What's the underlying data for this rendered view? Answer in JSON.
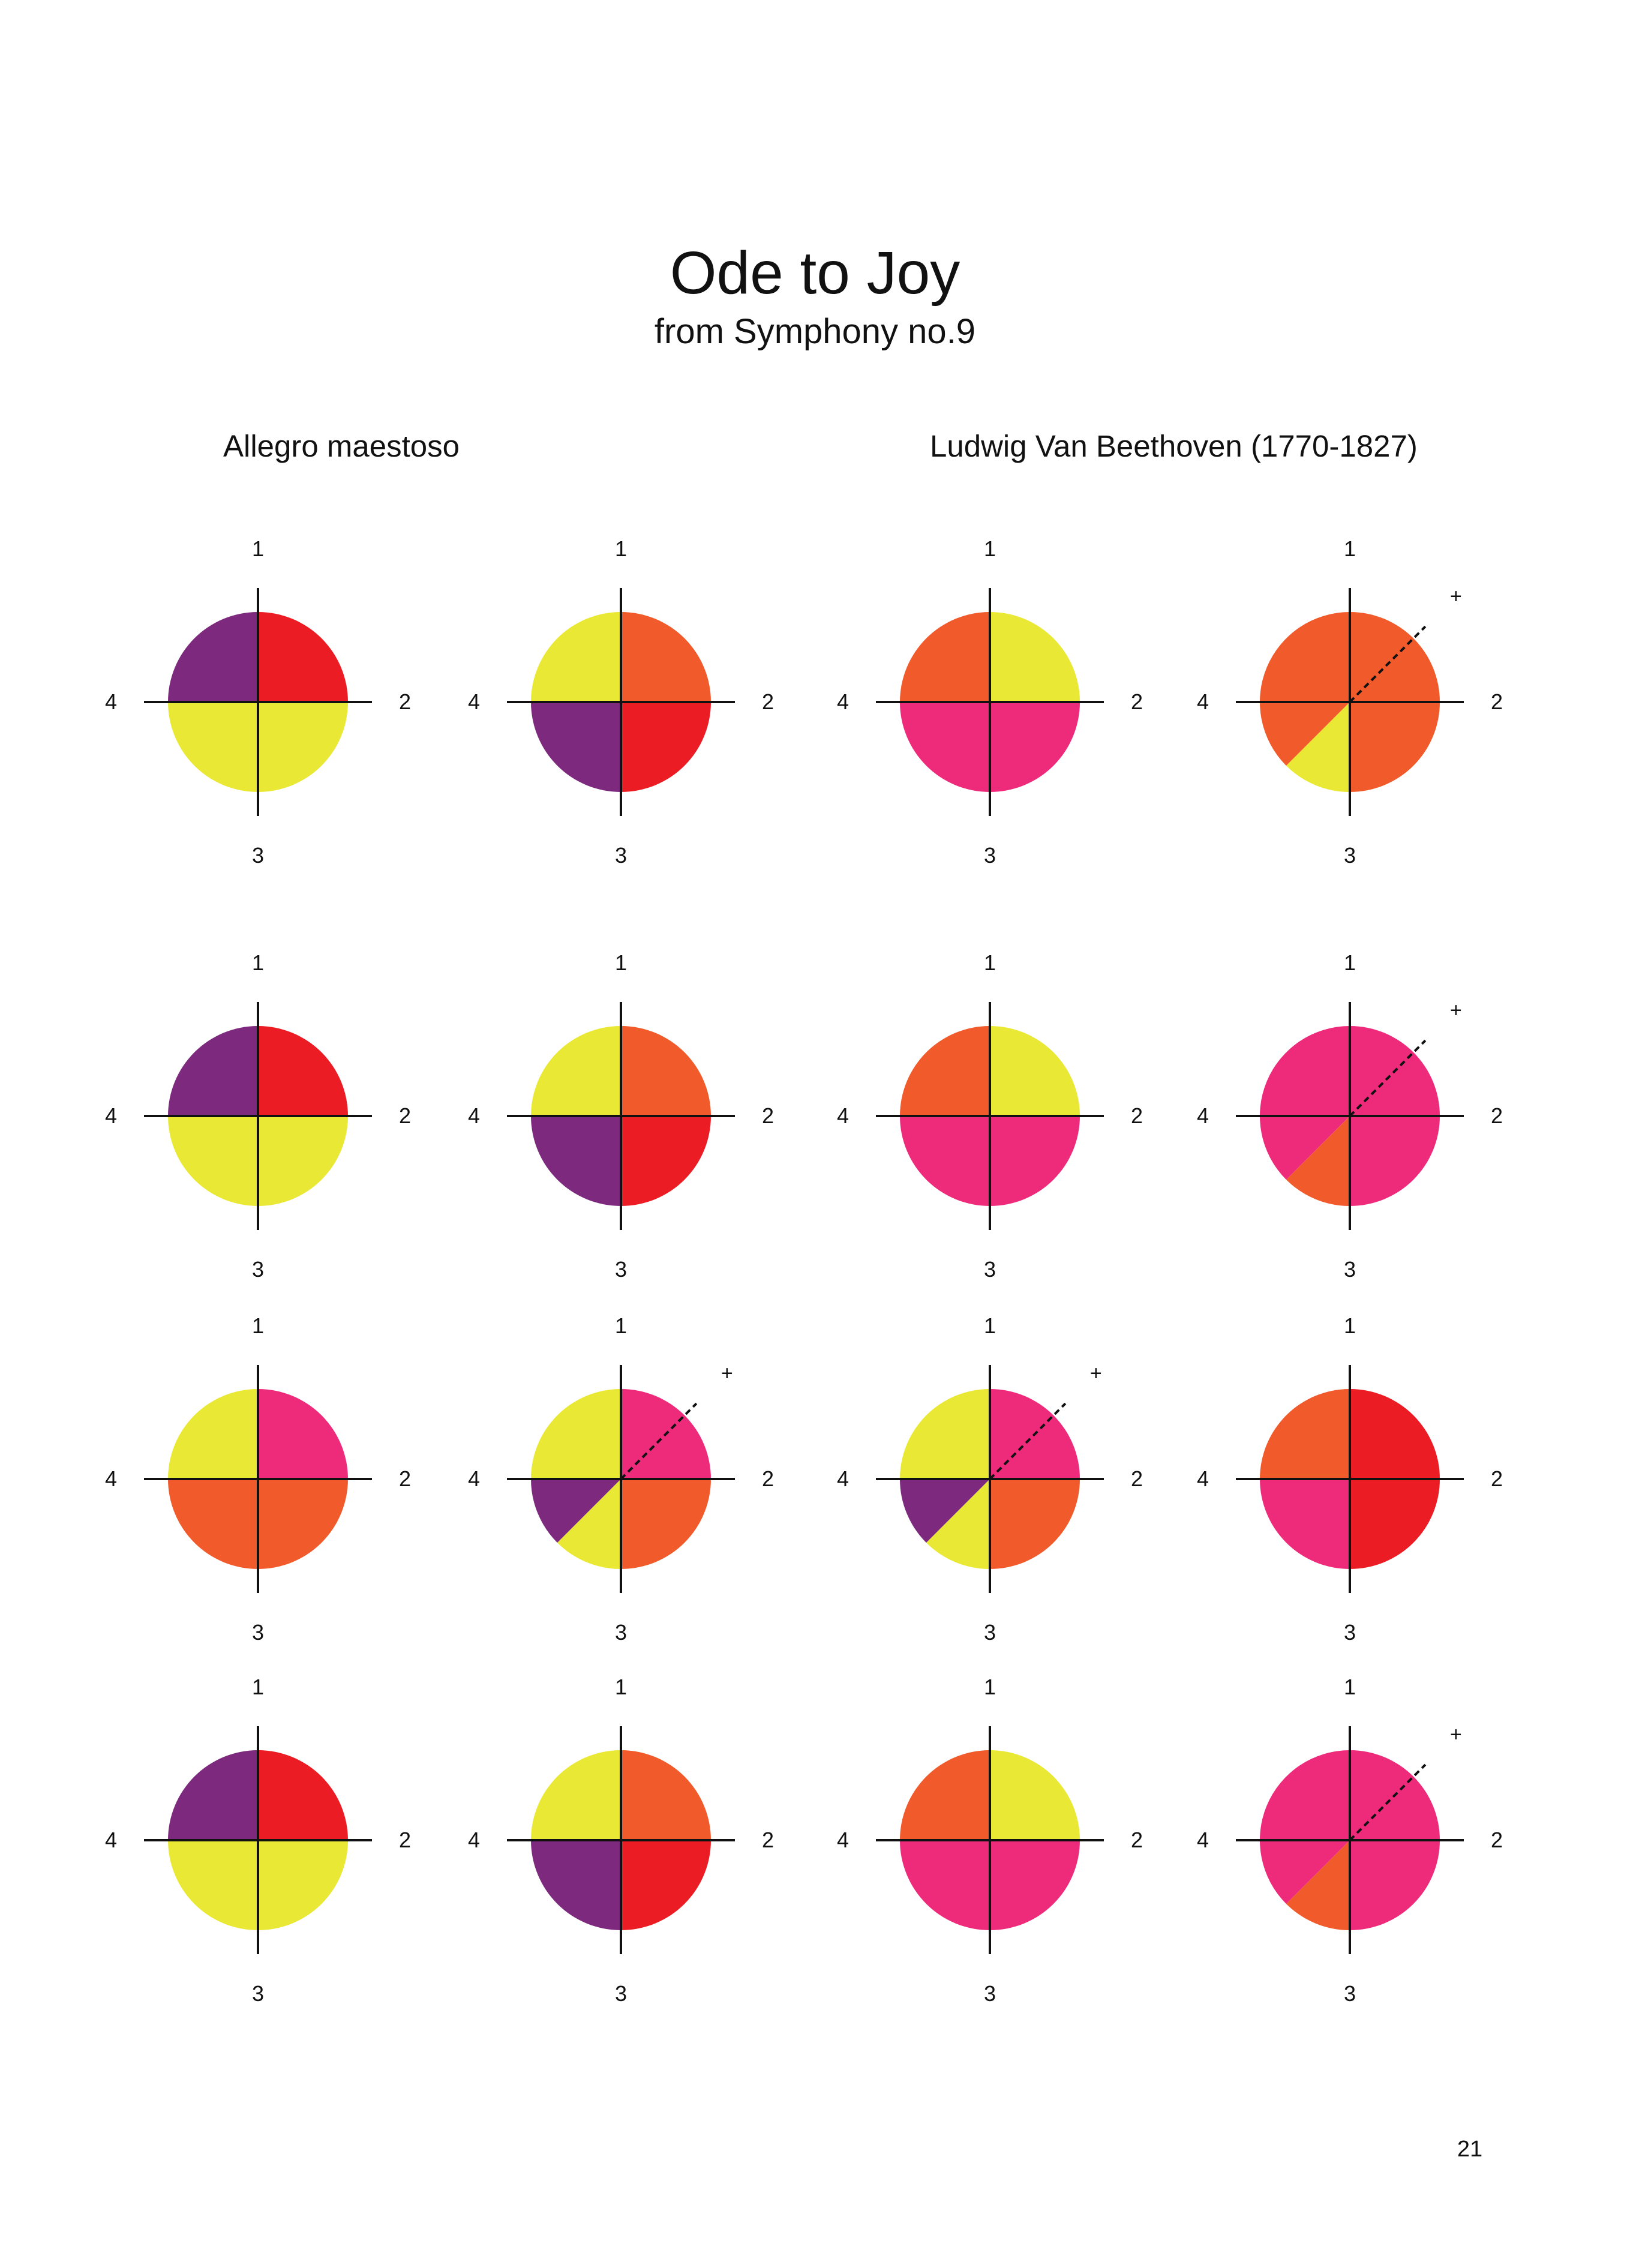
{
  "title": "Ode to Joy",
  "subtitle": "from Symphony no.9",
  "tempo": "Allegro maestoso",
  "composer": "Ludwig Van Beethoven (1770-1827)",
  "page_number": "21",
  "beat_labels": {
    "top": "1",
    "right": "2",
    "bottom": "3",
    "left": "4"
  },
  "plus_label": "+",
  "colors": {
    "red": "#ec1c24",
    "orange": "#f15a2b",
    "yellow": "#e9e835",
    "purple": "#7d2a7e",
    "pink": "#ee2a7b",
    "line": "#111111"
  },
  "measures": [
    [
      {
        "slices": [
          [
            "red",
            0.25
          ],
          [
            "yellow",
            0.5
          ],
          [
            "purple",
            0.25
          ]
        ]
      },
      {
        "slices": [
          [
            "orange",
            0.25
          ],
          [
            "red",
            0.25
          ],
          [
            "purple",
            0.25
          ],
          [
            "yellow",
            0.25
          ]
        ]
      },
      {
        "slices": [
          [
            "yellow",
            0.25
          ],
          [
            "pink",
            0.5
          ],
          [
            "orange",
            0.25
          ]
        ]
      },
      {
        "slices": [
          [
            "orange",
            0.5
          ],
          [
            "yellow",
            0.125
          ],
          [
            "orange",
            0.375
          ]
        ],
        "dashed_at": 0.125
      }
    ],
    [
      {
        "slices": [
          [
            "red",
            0.25
          ],
          [
            "yellow",
            0.5
          ],
          [
            "purple",
            0.25
          ]
        ]
      },
      {
        "slices": [
          [
            "orange",
            0.25
          ],
          [
            "red",
            0.25
          ],
          [
            "purple",
            0.25
          ],
          [
            "yellow",
            0.25
          ]
        ]
      },
      {
        "slices": [
          [
            "yellow",
            0.25
          ],
          [
            "pink",
            0.5
          ],
          [
            "orange",
            0.25
          ]
        ]
      },
      {
        "slices": [
          [
            "pink",
            0.5
          ],
          [
            "orange",
            0.125
          ],
          [
            "pink",
            0.375
          ]
        ],
        "dashed_at": 0.125
      }
    ],
    [
      {
        "slices": [
          [
            "pink",
            0.25
          ],
          [
            "orange",
            0.5
          ],
          [
            "yellow",
            0.25
          ]
        ]
      },
      {
        "slices": [
          [
            "pink",
            0.25
          ],
          [
            "orange",
            0.25
          ],
          [
            "yellow",
            0.125
          ],
          [
            "purple",
            0.125
          ],
          [
            "yellow",
            0.25
          ]
        ],
        "dashed_at": 0.125
      },
      {
        "slices": [
          [
            "pink",
            0.25
          ],
          [
            "orange",
            0.25
          ],
          [
            "yellow",
            0.125
          ],
          [
            "purple",
            0.125
          ],
          [
            "yellow",
            0.25
          ]
        ],
        "dashed_at": 0.125
      },
      {
        "slices": [
          [
            "red",
            0.5
          ],
          [
            "pink",
            0.25
          ],
          [
            "orange",
            0.25
          ]
        ]
      }
    ],
    [
      {
        "slices": [
          [
            "red",
            0.25
          ],
          [
            "yellow",
            0.5
          ],
          [
            "purple",
            0.25
          ]
        ]
      },
      {
        "slices": [
          [
            "orange",
            0.25
          ],
          [
            "red",
            0.25
          ],
          [
            "purple",
            0.25
          ],
          [
            "yellow",
            0.25
          ]
        ]
      },
      {
        "slices": [
          [
            "yellow",
            0.25
          ],
          [
            "pink",
            0.5
          ],
          [
            "orange",
            0.25
          ]
        ]
      },
      {
        "slices": [
          [
            "pink",
            0.5
          ],
          [
            "orange",
            0.125
          ],
          [
            "pink",
            0.375
          ]
        ],
        "dashed_at": 0.125
      }
    ]
  ]
}
